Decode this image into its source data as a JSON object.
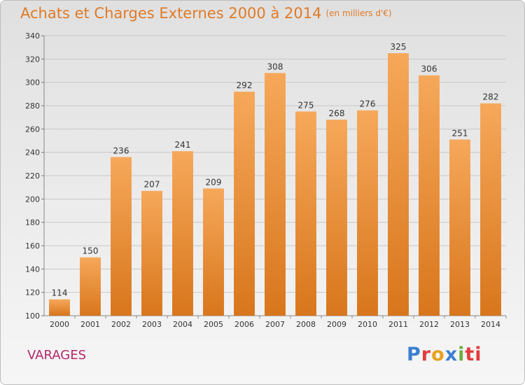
{
  "header": {
    "title": "Achats et Charges Externes 2000 à 2014",
    "unit": "(en milliers d'€)"
  },
  "footer": {
    "commune": "VARAGES",
    "logo_letters": [
      "P",
      "r",
      "o",
      "x",
      "i",
      "ti"
    ]
  },
  "colors": {
    "bar_top": "#f6a85a",
    "bar_bottom": "#d8761c",
    "title": "#e07a26",
    "commune": "#b5286a"
  },
  "chart_data": {
    "type": "bar",
    "title": "Achats et Charges Externes 2000 à 2014",
    "subtitle": "(en milliers d'€)",
    "categories": [
      "2000",
      "2001",
      "2002",
      "2003",
      "2004",
      "2005",
      "2006",
      "2007",
      "2008",
      "2009",
      "2010",
      "2011",
      "2012",
      "2013",
      "2014"
    ],
    "values": [
      114,
      150,
      236,
      207,
      241,
      209,
      292,
      308,
      275,
      268,
      276,
      325,
      306,
      251,
      282
    ],
    "data_labels": [
      "114",
      "150",
      "236",
      "207",
      "241",
      "209",
      "292",
      "308",
      "275",
      "268",
      "276",
      "325",
      "306",
      "251",
      "282"
    ],
    "ylim": [
      100,
      340
    ],
    "yticks": [
      100,
      120,
      140,
      160,
      180,
      200,
      220,
      240,
      260,
      280,
      300,
      320,
      340
    ],
    "grid": true,
    "legend": "none"
  }
}
